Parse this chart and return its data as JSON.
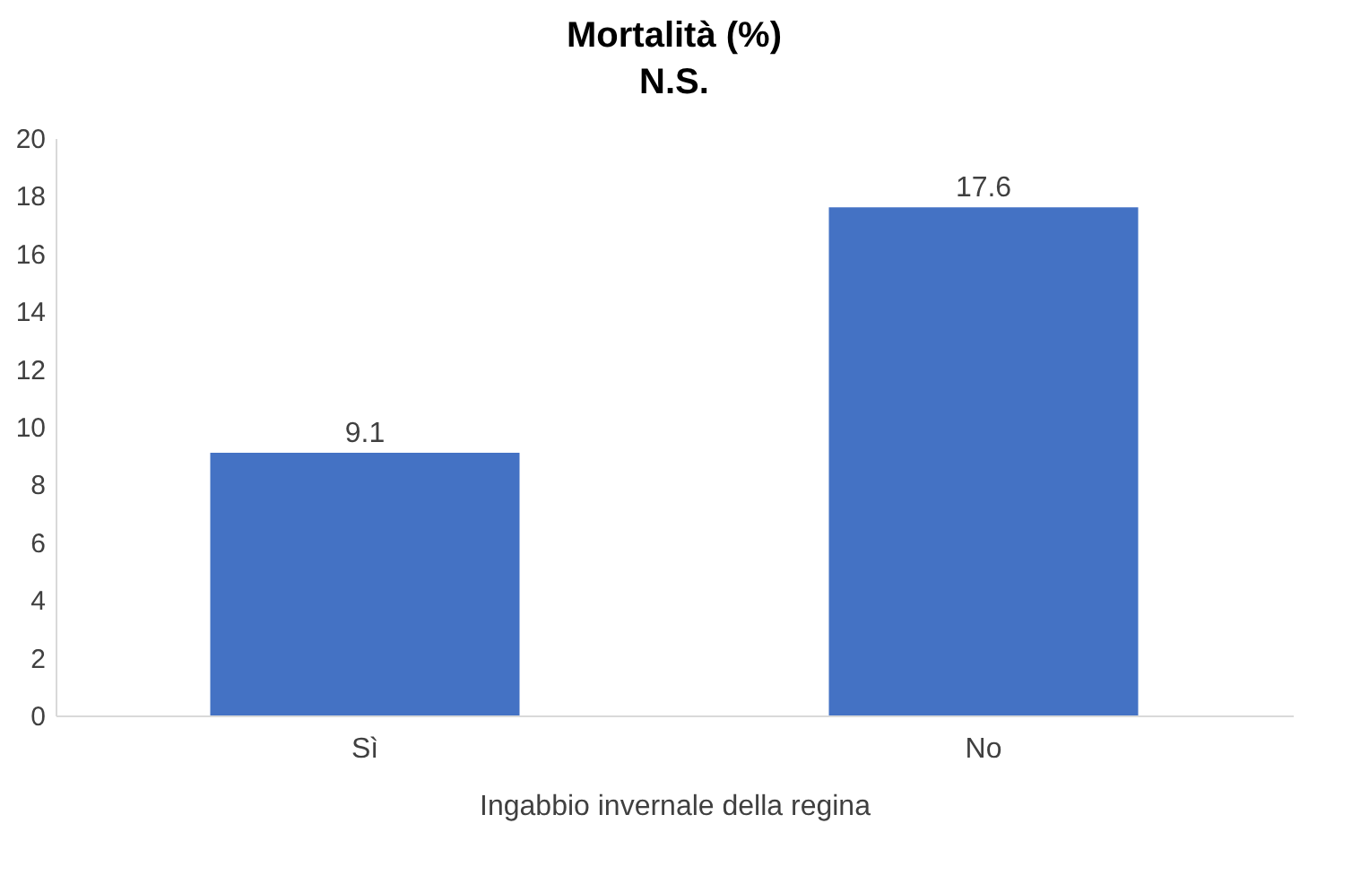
{
  "chart_data": {
    "type": "bar",
    "title": "Mortalità (%)",
    "subtitle": "N.S.",
    "xlabel": "Ingabbio invernale della regina",
    "categories": [
      "Sì",
      "No"
    ],
    "values": [
      9.1,
      17.6
    ],
    "color": "#4472c4",
    "ylim": [
      0,
      20
    ],
    "yticks": [
      0,
      2,
      4,
      6,
      8,
      10,
      12,
      14,
      16,
      18,
      20
    ],
    "grid": false,
    "data_labels": true
  }
}
